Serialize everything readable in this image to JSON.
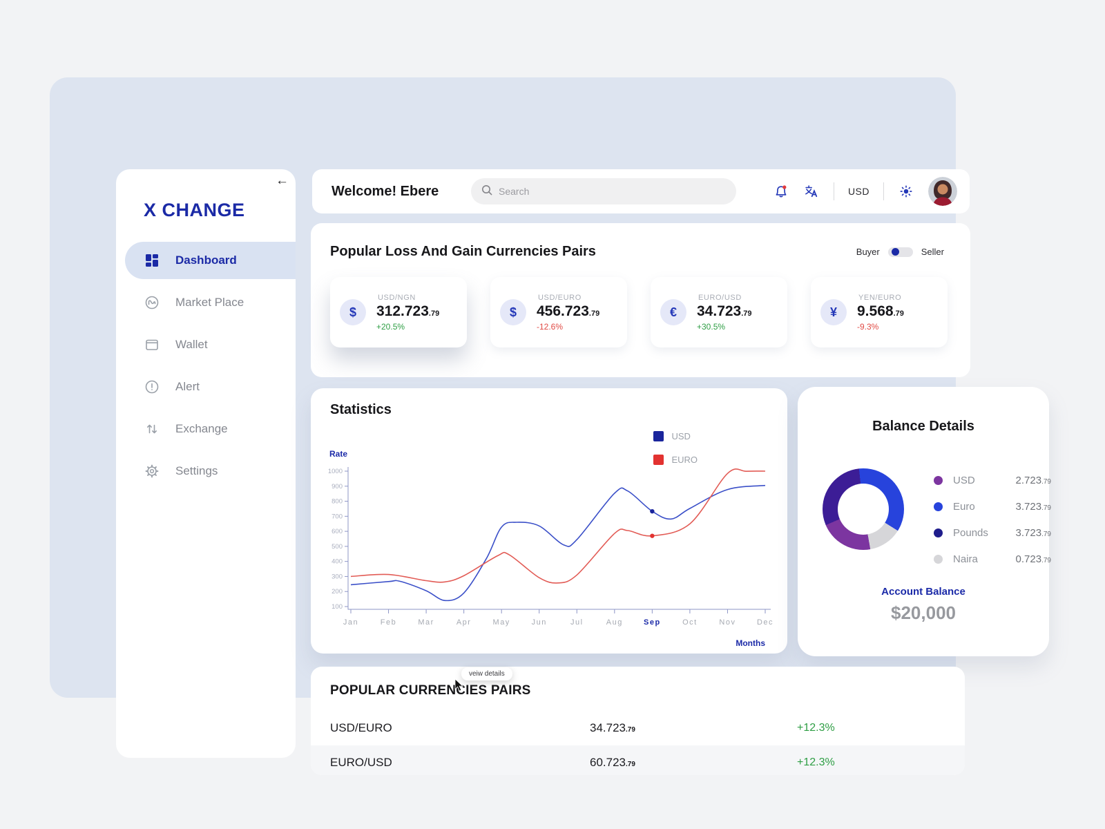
{
  "app": {
    "name": "X CHANGE",
    "collapse_icon": "←"
  },
  "sidebar": {
    "items": [
      {
        "label": "Dashboard",
        "icon": "dashboard-grid-icon",
        "active": true
      },
      {
        "label": "Market Place",
        "icon": "market-place-icon",
        "active": false
      },
      {
        "label": "Wallet",
        "icon": "wallet-icon",
        "active": false
      },
      {
        "label": "Alert",
        "icon": "alert-icon",
        "active": false
      },
      {
        "label": "Exchange",
        "icon": "exchange-arrows-icon",
        "active": false
      },
      {
        "label": "Settings",
        "icon": "gear-icon",
        "active": false
      }
    ]
  },
  "header": {
    "welcome": "Welcome! Ebere",
    "search_placeholder": "Search",
    "currency": "USD",
    "icons": [
      "bell-icon",
      "translate-icon",
      "sun-icon",
      "avatar"
    ]
  },
  "popular_pairs": {
    "title": "Popular Loss And Gain Currencies Pairs",
    "toggle": {
      "left": "Buyer",
      "right": "Seller"
    },
    "cards": [
      {
        "pair": "USD/NGN",
        "symbol": "$",
        "value": "312.723",
        "decimal": ".79",
        "change": "+20.5%",
        "direction": "up"
      },
      {
        "pair": "USD/EURO",
        "symbol": "$",
        "value": "456.723",
        "decimal": ".79",
        "change": "-12.6%",
        "direction": "down"
      },
      {
        "pair": "EURO/USD",
        "symbol": "€",
        "value": "34.723",
        "decimal": ".79",
        "change": "+30.5%",
        "direction": "up"
      },
      {
        "pair": "YEN/EURO",
        "symbol": "¥",
        "value": "9.568",
        "decimal": ".79",
        "change": "-9.3%",
        "direction": "down"
      }
    ]
  },
  "statistics": {
    "title": "Statistics"
  },
  "balance": {
    "title": "Balance Details",
    "legend": [
      {
        "name": "USD",
        "value": "2.723",
        "decimal": ".79",
        "color": "#7c35a0"
      },
      {
        "name": "Euro",
        "value": "3.723",
        "decimal": ".79",
        "color": "#2743dc"
      },
      {
        "name": "Pounds",
        "value": "3.723",
        "decimal": ".79",
        "color": "#1f1d8c"
      },
      {
        "name": "Naira",
        "value": "0.723",
        "decimal": ".79",
        "color": "#d6d6d9"
      }
    ],
    "account_balance_label": "Account Balance",
    "account_balance": "$20,000"
  },
  "table": {
    "title": "POPULAR CURRENCIES PAIRS",
    "tooltip": "veiw details",
    "rows": [
      {
        "pair": "USD/EURO",
        "value": "34.723",
        "decimal": ".79",
        "change": "+12.3%",
        "direction": "up"
      },
      {
        "pair": "EURO/USD",
        "value": "60.723",
        "decimal": ".79",
        "change": "+12.3%",
        "direction": "up"
      }
    ]
  },
  "chart_data": [
    {
      "type": "line",
      "title": "Statistics",
      "xlabel": "Months",
      "ylabel": "Rate",
      "x_categories": [
        "Jan",
        "Feb",
        "Mar",
        "Apr",
        "May",
        "Jun",
        "Jul",
        "Aug",
        "Sep",
        "Oct",
        "Nov",
        "Dec"
      ],
      "ylim": [
        100,
        1000
      ],
      "y_step": 100,
      "grid": false,
      "legend_position": "top-right",
      "highlight_month": "Sep",
      "axis_color": "#8d95c6",
      "tick_label_color": "#a6aab2",
      "highlight_color": "#1b2aa8",
      "series": [
        {
          "name": "USD",
          "color": "#3a4fc8",
          "legend_color": "#1a259c",
          "monthly_values": [
            245,
            266,
            205,
            190,
            628,
            636,
            545,
            853,
            733,
            752,
            878,
            905
          ],
          "detail_points": [
            [
              0,
              245
            ],
            [
              1,
              266
            ],
            [
              1.3,
              268
            ],
            [
              2,
              205
            ],
            [
              2.5,
              140
            ],
            [
              3,
              190
            ],
            [
              3.6,
              420
            ],
            [
              4,
              628
            ],
            [
              4.4,
              660
            ],
            [
              5,
              636
            ],
            [
              5.65,
              510
            ],
            [
              6,
              545
            ],
            [
              7,
              853
            ],
            [
              7.35,
              868
            ],
            [
              8,
              733
            ],
            [
              8.5,
              682
            ],
            [
              9,
              752
            ],
            [
              10,
              878
            ],
            [
              11,
              905
            ]
          ]
        },
        {
          "name": "EURO",
          "color": "#e25b55",
          "legend_color": "#e23230",
          "monthly_values": [
            300,
            313,
            272,
            305,
            440,
            292,
            310,
            586,
            570,
            650,
            985,
            1000
          ],
          "detail_points": [
            [
              0,
              300
            ],
            [
              1,
              313
            ],
            [
              2,
              272
            ],
            [
              2.5,
              264
            ],
            [
              3,
              305
            ],
            [
              3.9,
              438
            ],
            [
              4.2,
              445
            ],
            [
              5,
              292
            ],
            [
              5.5,
              257
            ],
            [
              6,
              310
            ],
            [
              7,
              586
            ],
            [
              7.35,
              605
            ],
            [
              8,
              570
            ],
            [
              9,
              650
            ],
            [
              10,
              985
            ],
            [
              10.5,
              999
            ],
            [
              11,
              1000
            ]
          ]
        }
      ],
      "markers": [
        {
          "series": "USD",
          "month": "Sep",
          "x": 8,
          "value": 733,
          "color": "#1a259c"
        },
        {
          "series": "EURO",
          "month": "Sep",
          "x": 8,
          "value": 570,
          "color": "#e23230"
        }
      ]
    },
    {
      "type": "pie",
      "title": "Balance Details",
      "labels": [
        "USD",
        "Euro",
        "Pounds",
        "Naira"
      ],
      "values": [
        2.72379,
        3.72379,
        3.72379,
        0.72379
      ],
      "colors": [
        "#7c35a0",
        "#2743dc",
        "#1f1d8c",
        "#d6d6d9"
      ],
      "donut": true,
      "rotate": -6,
      "visual_segments": [
        {
          "label": "Euro",
          "color": "#2743dc",
          "from": 0,
          "to": 128
        },
        {
          "label": "Naira",
          "color": "#d6d6d9",
          "from": 128,
          "to": 176
        },
        {
          "label": "USD",
          "color": "#7c35a0",
          "from": 176,
          "to": 253
        },
        {
          "label": "Pounds",
          "color": "#3c1d96",
          "from": 253,
          "to": 360
        }
      ]
    }
  ]
}
